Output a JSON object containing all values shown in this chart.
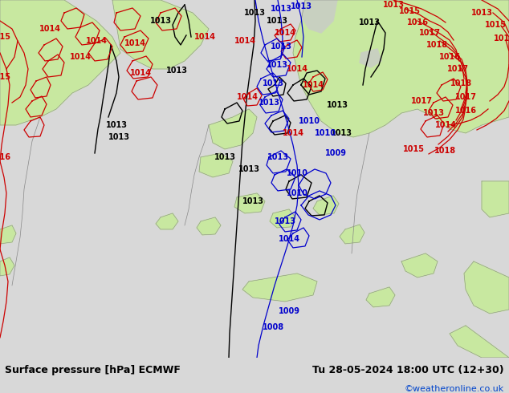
{
  "title_left": "Surface pressure [hPa] ECMWF",
  "title_right": "Tu 28-05-2024 18:00 UTC (12+30)",
  "credit": "©weatheronline.co.uk",
  "bg_land_color": "#c8e8a0",
  "bg_sea_color": "#dce8f0",
  "bg_gray_color": "#c8d0c0",
  "bg_bottom_color": "#d8d8d8",
  "text_color_left": "#000000",
  "text_color_right": "#000000",
  "text_color_credit": "#0044cc",
  "contour_black": "#000000",
  "contour_red": "#cc0000",
  "contour_blue": "#0000cc",
  "contour_gray": "#888888",
  "font_size_bottom": 9,
  "font_size_credit": 8,
  "font_size_label": 7
}
